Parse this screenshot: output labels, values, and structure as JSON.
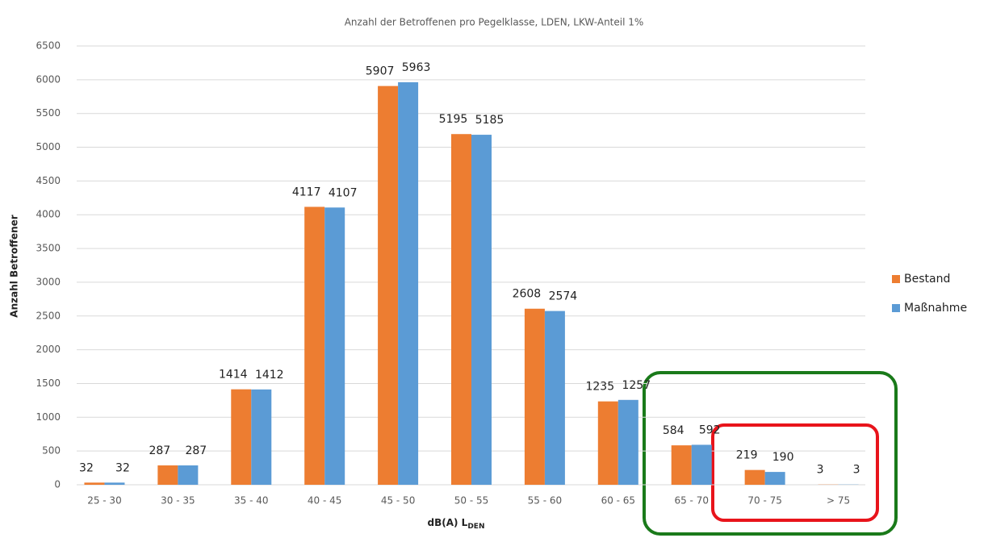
{
  "chart_data": {
    "type": "bar",
    "title": "Anzahl der Betroffenen pro Pegelklasse, LDEN, LKW-Anteil 1%",
    "x_label": "dB(A) L",
    "x_label_subscript": "DEN",
    "y_label": "Anzahl Betroffener",
    "categories": [
      "25 - 30",
      "30 - 35",
      "35 - 40",
      "40 - 45",
      "45 - 50",
      "50 - 55",
      "55 - 60",
      "60 - 65",
      "65 - 70",
      "70 - 75",
      "> 75"
    ],
    "series": [
      {
        "name": "Bestand",
        "color": "#ed7d31",
        "values": [
          32,
          287,
          1414,
          4117,
          5907,
          5195,
          2608,
          1235,
          584,
          219,
          3
        ]
      },
      {
        "name": "Maßnahme",
        "color": "#5b9bd5",
        "values": [
          32,
          287,
          1412,
          4107,
          5963,
          5185,
          2574,
          1257,
          592,
          190,
          3
        ]
      }
    ],
    "ylim": [
      0,
      6500
    ],
    "yticks": [
      0,
      500,
      1000,
      1500,
      2000,
      2500,
      3000,
      3500,
      4000,
      4500,
      5000,
      5500,
      6000,
      6500
    ],
    "grid": true,
    "legend": "right"
  }
}
